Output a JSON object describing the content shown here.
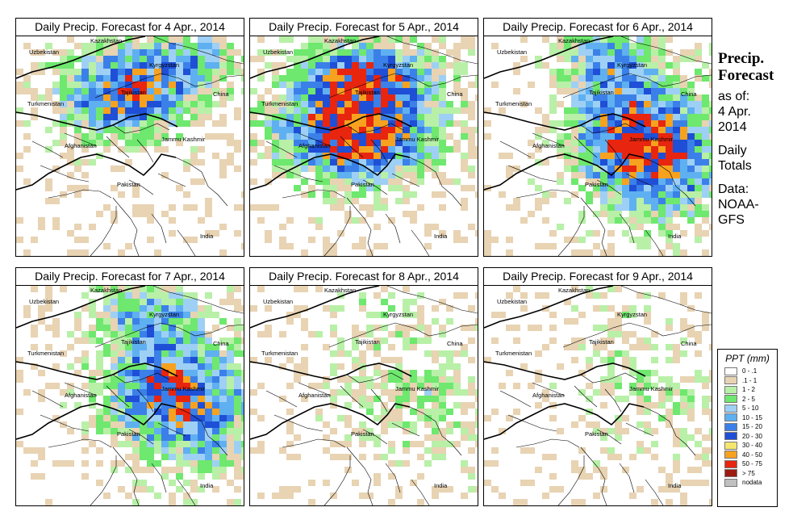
{
  "panels": [
    {
      "title": "Daily Precip. Forecast for  4 Apr., 2014",
      "intensity": 1.0,
      "focus": "north"
    },
    {
      "title": "Daily Precip. Forecast for  5 Apr., 2014",
      "intensity": 1.15,
      "focus": "center"
    },
    {
      "title": "Daily Precip. Forecast for  6 Apr., 2014",
      "intensity": 1.0,
      "focus": "east"
    },
    {
      "title": "Daily Precip. Forecast for  7 Apr., 2014",
      "intensity": 0.85,
      "focus": "east"
    },
    {
      "title": "Daily Precip. Forecast for  8 Apr., 2014",
      "intensity": 0.25,
      "focus": "east"
    },
    {
      "title": "Daily Precip. Forecast for  9 Apr., 2014",
      "intensity": 0.18,
      "focus": "east"
    }
  ],
  "map_labels": {
    "kazakhstan": "Kazakhstan",
    "uzbekistan": "Uzbekistan",
    "kyrgyzstan": "Kyrgyzstan",
    "tajikistan": "Tajikistan",
    "turkmenistan": "Turkmenistan",
    "china": "China",
    "afghanistan": "Afghanistan",
    "jammu_kashmir": "Jammu Kashmir",
    "pakistan": "Pakistan",
    "india": "India"
  },
  "side_text": {
    "heading_line1": "Precip.",
    "heading_line2": "Forecast",
    "asof_line1": "as of:",
    "asof_line2": "4 Apr.",
    "asof_line3": "2014",
    "daily_line1": "Daily",
    "daily_line2": "Totals",
    "data_line1": "Data:",
    "data_line2": "NOAA-",
    "data_line3": "GFS"
  },
  "legend": {
    "title": "PPT (mm)",
    "items": [
      {
        "label": "0 - .1",
        "color": "#ffffff"
      },
      {
        "label": ".1 - 1",
        "color": "#e8d3b3"
      },
      {
        "label": "1 - 2",
        "color": "#b8f0a8"
      },
      {
        "label": "2 - 5",
        "color": "#6ee86e"
      },
      {
        "label": "5 - 10",
        "color": "#9ed0f5"
      },
      {
        "label": "10 - 15",
        "color": "#5fb0f0"
      },
      {
        "label": "15 - 20",
        "color": "#3b80e8"
      },
      {
        "label": "20 - 30",
        "color": "#1f4fd6"
      },
      {
        "label": "30 - 40",
        "color": "#f5e66e"
      },
      {
        "label": "40 - 50",
        "color": "#f7a21f"
      },
      {
        "label": "50 - 75",
        "color": "#e8250f"
      },
      {
        "label": "> 75",
        "color": "#9c1a10"
      },
      {
        "label": "nodata",
        "color": "#c0c0c0"
      }
    ]
  }
}
